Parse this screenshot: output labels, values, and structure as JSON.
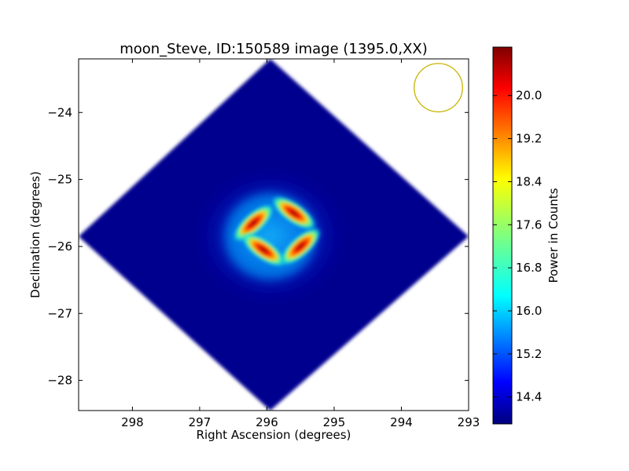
{
  "chart_data": {
    "type": "heatmap",
    "title": "moon_Steve, ID:150589 image (1395.0,XX)",
    "xlabel": "Right Ascension (degrees)",
    "ylabel": "Declination (degrees)",
    "xlim": [
      298.8,
      293.0
    ],
    "ylim": [
      -28.45,
      -23.2
    ],
    "x_ticks": [
      298,
      297,
      296,
      295,
      294,
      293
    ],
    "y_ticks": [
      -24,
      -25,
      -26,
      -27,
      -28
    ],
    "x_tick_labels": [
      "298",
      "297",
      "296",
      "295",
      "294",
      "293"
    ],
    "y_tick_labels": [
      "−24",
      "−25",
      "−26",
      "−27",
      "−28"
    ],
    "colormap": "jet",
    "colorbar": {
      "label": "Power in Counts",
      "range": [
        13.9,
        20.9
      ],
      "ticks": [
        14.4,
        15.2,
        16.0,
        16.8,
        17.6,
        18.4,
        19.2,
        20.0
      ],
      "tick_labels": [
        "14.4",
        "15.2",
        "16.0",
        "16.8",
        "17.6",
        "18.4",
        "19.2",
        "20.0"
      ]
    },
    "field_outline": {
      "shape": "diamond",
      "center": [
        295.95,
        -25.85
      ],
      "vertices": [
        [
          295.95,
          -23.2
        ],
        [
          298.8,
          -25.85
        ],
        [
          295.95,
          -28.45
        ],
        [
          293.0,
          -25.85
        ]
      ]
    },
    "background_level": 14.1,
    "features": [
      {
        "name": "lobe-upper-left",
        "center": [
          296.2,
          -25.65
        ],
        "peak": 20.6
      },
      {
        "name": "lobe-upper-right",
        "center": [
          295.6,
          -25.5
        ],
        "peak": 20.6
      },
      {
        "name": "lobe-lower-left",
        "center": [
          296.05,
          -26.05
        ],
        "peak": 20.6
      },
      {
        "name": "lobe-lower-right",
        "center": [
          295.5,
          -26.0
        ],
        "peak": 20.3
      }
    ],
    "beam_circle": {
      "center": [
        293.45,
        -23.63
      ],
      "radius_deg": 0.36,
      "color": "#c8b400"
    },
    "grid": false,
    "legend": "none"
  },
  "colors": {
    "frame": "#000000",
    "beam": "#c8b400",
    "background_field": "#00008f"
  }
}
